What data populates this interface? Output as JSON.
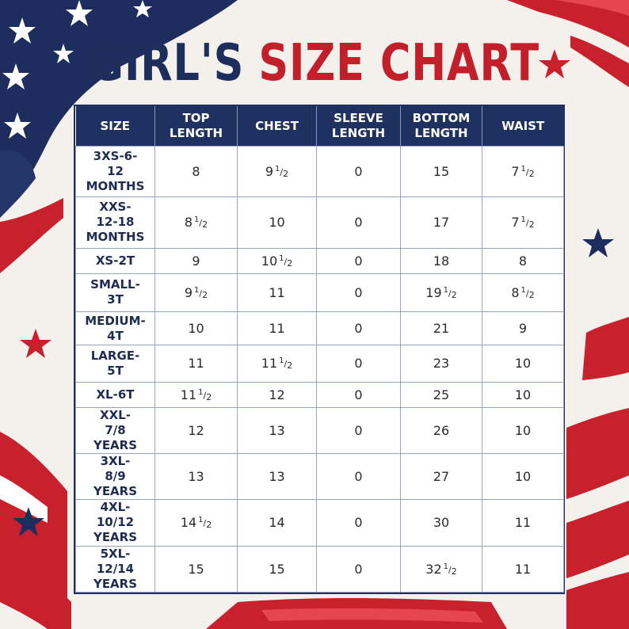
{
  "title": {
    "part1": "GIRL'S",
    "part2": "SIZE CHART"
  },
  "colors": {
    "navy": "#1f3161",
    "red": "#c21f2b",
    "background": "#f4f1ec"
  },
  "table": {
    "headers": [
      [
        "SIZE"
      ],
      [
        "TOP",
        "LENGTH"
      ],
      [
        "CHEST"
      ],
      [
        "SLEEVE",
        "LENGTH"
      ],
      [
        "BOTTOM",
        "LENGTH"
      ],
      [
        "WAIST"
      ]
    ],
    "rows": [
      {
        "size": [
          "3XS-6-",
          "12",
          "MONTHS"
        ],
        "cells": [
          {
            "w": "8",
            "f": ""
          },
          {
            "w": "9",
            "f": "1/2"
          },
          {
            "w": "0",
            "f": ""
          },
          {
            "w": "15",
            "f": ""
          },
          {
            "w": "7",
            "f": "1/2"
          }
        ]
      },
      {
        "size": [
          "XXS-",
          "12-18",
          "MONTHS"
        ],
        "cells": [
          {
            "w": "8",
            "f": "1/2"
          },
          {
            "w": "10",
            "f": ""
          },
          {
            "w": "0",
            "f": ""
          },
          {
            "w": "17",
            "f": ""
          },
          {
            "w": "7",
            "f": "1/2"
          }
        ]
      },
      {
        "size": [
          "XS-2T"
        ],
        "cells": [
          {
            "w": "9",
            "f": ""
          },
          {
            "w": "10",
            "f": "1/2"
          },
          {
            "w": "0",
            "f": ""
          },
          {
            "w": "18",
            "f": ""
          },
          {
            "w": "8",
            "f": ""
          }
        ]
      },
      {
        "size": [
          "SMALL-",
          "3T"
        ],
        "cells": [
          {
            "w": "9",
            "f": "1/2"
          },
          {
            "w": "11",
            "f": ""
          },
          {
            "w": "0",
            "f": ""
          },
          {
            "w": "19",
            "f": "1/2"
          },
          {
            "w": "8",
            "f": "1/2"
          }
        ]
      },
      {
        "size": [
          "MEDIUM-",
          "4T"
        ],
        "cells": [
          {
            "w": "10",
            "f": ""
          },
          {
            "w": "11",
            "f": ""
          },
          {
            "w": "0",
            "f": ""
          },
          {
            "w": "21",
            "f": ""
          },
          {
            "w": "9",
            "f": ""
          }
        ]
      },
      {
        "size": [
          "LARGE-",
          "5T"
        ],
        "cells": [
          {
            "w": "11",
            "f": ""
          },
          {
            "w": "11",
            "f": "1/2"
          },
          {
            "w": "0",
            "f": ""
          },
          {
            "w": "23",
            "f": ""
          },
          {
            "w": "10",
            "f": ""
          }
        ]
      },
      {
        "size": [
          "XL-6T"
        ],
        "cells": [
          {
            "w": "11",
            "f": "1/2"
          },
          {
            "w": "12",
            "f": ""
          },
          {
            "w": "0",
            "f": ""
          },
          {
            "w": "25",
            "f": ""
          },
          {
            "w": "10",
            "f": ""
          }
        ]
      },
      {
        "size": [
          "XXL-",
          "7/8",
          "YEARS"
        ],
        "cells": [
          {
            "w": "12",
            "f": ""
          },
          {
            "w": "13",
            "f": ""
          },
          {
            "w": "0",
            "f": ""
          },
          {
            "w": "26",
            "f": ""
          },
          {
            "w": "10",
            "f": ""
          }
        ]
      },
      {
        "size": [
          "3XL-",
          "8/9",
          "YEARS"
        ],
        "cells": [
          {
            "w": "13",
            "f": ""
          },
          {
            "w": "13",
            "f": ""
          },
          {
            "w": "0",
            "f": ""
          },
          {
            "w": "27",
            "f": ""
          },
          {
            "w": "10",
            "f": ""
          }
        ]
      },
      {
        "size": [
          "4XL-",
          "10/12",
          "YEARS"
        ],
        "cells": [
          {
            "w": "14",
            "f": "1/2"
          },
          {
            "w": "14",
            "f": ""
          },
          {
            "w": "0",
            "f": ""
          },
          {
            "w": "30",
            "f": ""
          },
          {
            "w": "11",
            "f": ""
          }
        ]
      },
      {
        "size": [
          "5XL-",
          "12/14",
          "YEARS"
        ],
        "cells": [
          {
            "w": "15",
            "f": ""
          },
          {
            "w": "15",
            "f": ""
          },
          {
            "w": "0",
            "f": ""
          },
          {
            "w": "32",
            "f": "1/2"
          },
          {
            "w": "11",
            "f": ""
          }
        ]
      }
    ]
  }
}
